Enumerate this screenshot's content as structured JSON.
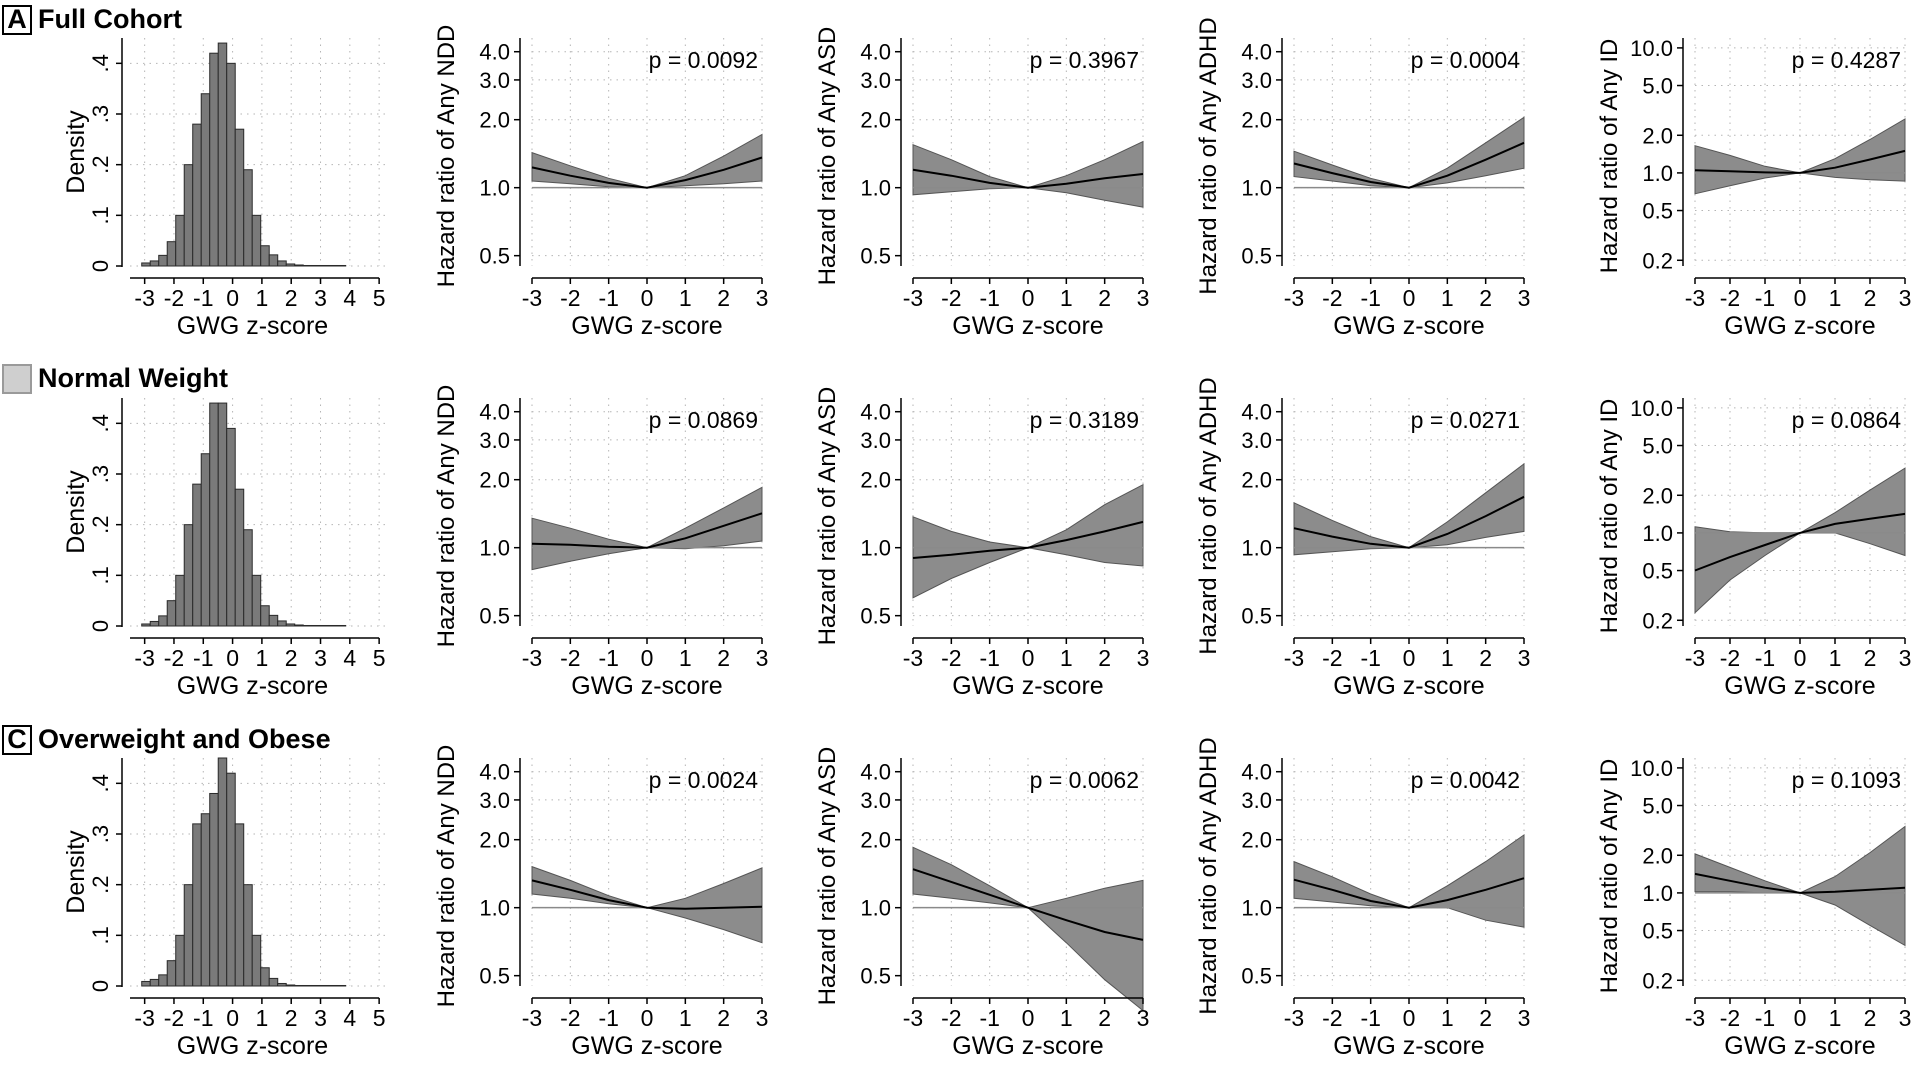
{
  "rows": [
    {
      "tag": "A",
      "title": "Full Cohort"
    },
    {
      "tag": "",
      "title": "Normal Weight"
    },
    {
      "tag": "C",
      "title": "Overweight and Obese"
    }
  ],
  "chart_data": [
    {
      "panel": "A",
      "type": "bar",
      "kind": "histogram",
      "xlabel": "GWG z-score",
      "ylabel": "Density",
      "xlim": [
        -3.5,
        5.2
      ],
      "ylim": [
        0,
        0.45
      ],
      "xticks": [
        "-3",
        "-2",
        "-1",
        "0",
        "1",
        "2",
        "3",
        "4",
        "5"
      ],
      "yticks": [
        "0",
        ".1",
        ".2",
        ".3",
        ".4"
      ],
      "bin_start": -3.1,
      "bin_width": 0.29,
      "values": [
        0.006,
        0.01,
        0.021,
        0.048,
        0.1,
        0.2,
        0.28,
        0.34,
        0.42,
        0.44,
        0.4,
        0.27,
        0.19,
        0.1,
        0.04,
        0.022,
        0.01,
        0.004,
        0.002,
        0.001,
        0.001,
        0.001,
        0.001,
        0.001
      ]
    },
    {
      "panel": "A",
      "type": "area",
      "outcome": "NDD",
      "xlabel": "GWG z-score",
      "ylabel": "Hazard ratio of Any NDD",
      "scale": "log",
      "xlim": [
        -3,
        3
      ],
      "ylim": [
        0.45,
        4.6
      ],
      "xticks": [
        "-3",
        "-2",
        "-1",
        "0",
        "1",
        "2",
        "3"
      ],
      "yticks": [
        "0.5",
        "1.0",
        "2.0",
        "3.0",
        "4.0"
      ],
      "annotation": "p = 0.0092",
      "x": [
        -3,
        -2,
        -1,
        0,
        1,
        2,
        3
      ],
      "hr": [
        1.23,
        1.13,
        1.05,
        1.0,
        1.08,
        1.2,
        1.36
      ],
      "lower": [
        1.07,
        1.04,
        1.01,
        1.0,
        1.02,
        1.04,
        1.07
      ],
      "upper": [
        1.43,
        1.25,
        1.1,
        1.0,
        1.13,
        1.38,
        1.72
      ]
    },
    {
      "panel": "A",
      "type": "area",
      "outcome": "ASD",
      "xlabel": "GWG z-score",
      "ylabel": "Hazard ratio of Any ASD",
      "scale": "log",
      "xlim": [
        -3,
        3
      ],
      "ylim": [
        0.45,
        4.6
      ],
      "xticks": [
        "-3",
        "-2",
        "-1",
        "0",
        "1",
        "2",
        "3"
      ],
      "yticks": [
        "0.5",
        "1.0",
        "2.0",
        "3.0",
        "4.0"
      ],
      "annotation": "p = 0.3967",
      "x": [
        -3,
        -2,
        -1,
        0,
        1,
        2,
        3
      ],
      "hr": [
        1.2,
        1.13,
        1.05,
        1.0,
        1.04,
        1.1,
        1.15
      ],
      "lower": [
        0.93,
        0.96,
        0.99,
        1.0,
        0.95,
        0.88,
        0.82
      ],
      "upper": [
        1.55,
        1.33,
        1.12,
        1.0,
        1.13,
        1.33,
        1.6
      ]
    },
    {
      "panel": "A",
      "type": "area",
      "outcome": "ADHD",
      "xlabel": "GWG z-score",
      "ylabel": "Hazard ratio of Any ADHD",
      "scale": "log",
      "xlim": [
        -3,
        3
      ],
      "ylim": [
        0.45,
        4.6
      ],
      "xticks": [
        "-3",
        "-2",
        "-1",
        "0",
        "1",
        "2",
        "3"
      ],
      "yticks": [
        "0.5",
        "1.0",
        "2.0",
        "3.0",
        "4.0"
      ],
      "annotation": "p = 0.0004",
      "x": [
        -3,
        -2,
        -1,
        0,
        1,
        2,
        3
      ],
      "hr": [
        1.28,
        1.16,
        1.06,
        1.0,
        1.13,
        1.33,
        1.58
      ],
      "lower": [
        1.12,
        1.07,
        1.02,
        1.0,
        1.05,
        1.13,
        1.22
      ],
      "upper": [
        1.45,
        1.26,
        1.1,
        1.0,
        1.22,
        1.58,
        2.05
      ]
    },
    {
      "panel": "A",
      "type": "area",
      "outcome": "ID",
      "xlabel": "GWG z-score",
      "ylabel": "Hazard ratio of Any ID",
      "scale": "log",
      "xlim": [
        -3,
        3
      ],
      "ylim": [
        0.18,
        12
      ],
      "xticks": [
        "-3",
        "-2",
        "-1",
        "0",
        "1",
        "2",
        "3"
      ],
      "yticks": [
        "0.2",
        "0.5",
        "1.0",
        "2.0",
        "5.0",
        "10.0"
      ],
      "annotation": "p = 0.4287",
      "x": [
        -3,
        -2,
        -1,
        0,
        1,
        2,
        3
      ],
      "hr": [
        1.05,
        1.03,
        1.01,
        1.0,
        1.1,
        1.28,
        1.5
      ],
      "lower": [
        0.68,
        0.79,
        0.91,
        1.0,
        0.92,
        0.88,
        0.86
      ],
      "upper": [
        1.65,
        1.38,
        1.13,
        1.0,
        1.3,
        1.85,
        2.7
      ]
    },
    {
      "panel": "Normal Weight",
      "type": "bar",
      "kind": "histogram",
      "xlabel": "GWG z-score",
      "ylabel": "Density",
      "xlim": [
        -3.5,
        5.2
      ],
      "ylim": [
        0,
        0.45
      ],
      "xticks": [
        "-3",
        "-2",
        "-1",
        "0",
        "1",
        "2",
        "3",
        "4",
        "5"
      ],
      "yticks": [
        "0",
        ".1",
        ".2",
        ".3",
        ".4"
      ],
      "bin_start": -3.1,
      "bin_width": 0.29,
      "values": [
        0.004,
        0.009,
        0.02,
        0.05,
        0.1,
        0.2,
        0.28,
        0.34,
        0.44,
        0.44,
        0.39,
        0.27,
        0.19,
        0.1,
        0.04,
        0.021,
        0.01,
        0.004,
        0.002,
        0.001,
        0.001,
        0.001,
        0.001,
        0.001
      ]
    },
    {
      "panel": "Normal Weight",
      "type": "area",
      "outcome": "NDD",
      "xlabel": "GWG z-score",
      "ylabel": "Hazard ratio of Any NDD",
      "scale": "log",
      "xlim": [
        -3,
        3
      ],
      "ylim": [
        0.45,
        4.6
      ],
      "xticks": [
        "-3",
        "-2",
        "-1",
        "0",
        "1",
        "2",
        "3"
      ],
      "yticks": [
        "0.5",
        "1.0",
        "2.0",
        "3.0",
        "4.0"
      ],
      "annotation": "p = 0.0869",
      "x": [
        -3,
        -2,
        -1,
        0,
        1,
        2,
        3
      ],
      "hr": [
        1.04,
        1.03,
        1.01,
        1.0,
        1.1,
        1.25,
        1.42
      ],
      "lower": [
        0.8,
        0.87,
        0.94,
        1.0,
        0.99,
        1.02,
        1.07
      ],
      "upper": [
        1.35,
        1.22,
        1.09,
        1.0,
        1.22,
        1.5,
        1.85
      ]
    },
    {
      "panel": "Normal Weight",
      "type": "area",
      "outcome": "ASD",
      "xlabel": "GWG z-score",
      "ylabel": "Hazard ratio of Any ASD",
      "scale": "log",
      "xlim": [
        -3,
        3
      ],
      "ylim": [
        0.45,
        4.6
      ],
      "xticks": [
        "-3",
        "-2",
        "-1",
        "0",
        "1",
        "2",
        "3"
      ],
      "yticks": [
        "0.5",
        "1.0",
        "2.0",
        "3.0",
        "4.0"
      ],
      "annotation": "p = 0.3189",
      "x": [
        -3,
        -2,
        -1,
        0,
        1,
        2,
        3
      ],
      "hr": [
        0.9,
        0.93,
        0.97,
        1.0,
        1.08,
        1.18,
        1.3
      ],
      "lower": [
        0.6,
        0.73,
        0.86,
        1.0,
        0.93,
        0.86,
        0.83
      ],
      "upper": [
        1.37,
        1.18,
        1.06,
        1.0,
        1.2,
        1.55,
        1.9
      ]
    },
    {
      "panel": "Normal Weight",
      "type": "area",
      "outcome": "ADHD",
      "xlabel": "GWG z-score",
      "ylabel": "Hazard ratio of Any ADHD",
      "scale": "log",
      "xlim": [
        -3,
        3
      ],
      "ylim": [
        0.45,
        4.6
      ],
      "xticks": [
        "-3",
        "-2",
        "-1",
        "0",
        "1",
        "2",
        "3"
      ],
      "yticks": [
        "0.5",
        "1.0",
        "2.0",
        "3.0",
        "4.0"
      ],
      "annotation": "p = 0.0271",
      "x": [
        -3,
        -2,
        -1,
        0,
        1,
        2,
        3
      ],
      "hr": [
        1.22,
        1.12,
        1.04,
        1.0,
        1.15,
        1.38,
        1.68
      ],
      "lower": [
        0.93,
        0.96,
        0.99,
        1.0,
        1.03,
        1.11,
        1.18
      ],
      "upper": [
        1.58,
        1.32,
        1.12,
        1.0,
        1.3,
        1.75,
        2.35
      ]
    },
    {
      "panel": "Normal Weight",
      "type": "area",
      "outcome": "ID",
      "xlabel": "GWG z-score",
      "ylabel": "Hazard ratio of Any ID",
      "scale": "log",
      "xlim": [
        -3,
        3
      ],
      "ylim": [
        0.18,
        12
      ],
      "xticks": [
        "-3",
        "-2",
        "-1",
        "0",
        "1",
        "2",
        "3"
      ],
      "yticks": [
        "0.2",
        "0.5",
        "1.0",
        "2.0",
        "5.0",
        "10.0"
      ],
      "annotation": "p = 0.0864",
      "x": [
        -3,
        -2,
        -1,
        0,
        1,
        2,
        3
      ],
      "hr": [
        0.5,
        0.64,
        0.8,
        1.0,
        1.18,
        1.3,
        1.42
      ],
      "lower": [
        0.23,
        0.42,
        0.66,
        1.0,
        1.0,
        0.82,
        0.66
      ],
      "upper": [
        1.12,
        1.02,
        1.0,
        1.0,
        1.45,
        2.2,
        3.3
      ]
    },
    {
      "panel": "C",
      "type": "bar",
      "kind": "histogram",
      "xlabel": "GWG z-score",
      "ylabel": "Density",
      "xlim": [
        -3.5,
        5.2
      ],
      "ylim": [
        0,
        0.45
      ],
      "xticks": [
        "-3",
        "-2",
        "-1",
        "0",
        "1",
        "2",
        "3",
        "4",
        "5"
      ],
      "yticks": [
        "0",
        ".1",
        ".2",
        ".3",
        ".4"
      ],
      "bin_start": -3.1,
      "bin_width": 0.29,
      "values": [
        0.009,
        0.013,
        0.022,
        0.05,
        0.1,
        0.2,
        0.32,
        0.34,
        0.38,
        0.45,
        0.42,
        0.32,
        0.2,
        0.1,
        0.036,
        0.015,
        0.005,
        0.002,
        0.001,
        0.001,
        0.001,
        0.001,
        0.001,
        0.001
      ]
    },
    {
      "panel": "C",
      "type": "area",
      "outcome": "NDD",
      "xlabel": "GWG z-score",
      "ylabel": "Hazard ratio of Any NDD",
      "scale": "log",
      "xlim": [
        -3,
        3
      ],
      "ylim": [
        0.45,
        4.6
      ],
      "xticks": [
        "-3",
        "-2",
        "-1",
        "0",
        "1",
        "2",
        "3"
      ],
      "yticks": [
        "0.5",
        "1.0",
        "2.0",
        "3.0",
        "4.0"
      ],
      "annotation": "p = 0.0024",
      "x": [
        -3,
        -2,
        -1,
        0,
        1,
        2,
        3
      ],
      "hr": [
        1.32,
        1.2,
        1.08,
        1.0,
        0.99,
        1.0,
        1.01
      ],
      "lower": [
        1.15,
        1.1,
        1.04,
        1.0,
        0.9,
        0.8,
        0.7
      ],
      "upper": [
        1.52,
        1.32,
        1.13,
        1.0,
        1.1,
        1.28,
        1.5
      ]
    },
    {
      "panel": "C",
      "type": "area",
      "outcome": "ASD",
      "xlabel": "GWG z-score",
      "ylabel": "Hazard ratio of Any ASD",
      "scale": "log",
      "xlim": [
        -3,
        3
      ],
      "ylim": [
        0.45,
        4.6
      ],
      "xticks": [
        "-3",
        "-2",
        "-1",
        "0",
        "1",
        "2",
        "3"
      ],
      "yticks": [
        "0.5",
        "1.0",
        "2.0",
        "3.0",
        "4.0"
      ],
      "annotation": "p = 0.0062",
      "x": [
        -3,
        -2,
        -1,
        0,
        1,
        2,
        3
      ],
      "hr": [
        1.48,
        1.3,
        1.14,
        1.0,
        0.88,
        0.78,
        0.72
      ],
      "lower": [
        1.15,
        1.1,
        1.05,
        1.0,
        0.7,
        0.48,
        0.35
      ],
      "upper": [
        1.85,
        1.55,
        1.25,
        1.0,
        1.1,
        1.22,
        1.32
      ]
    },
    {
      "panel": "C",
      "type": "area",
      "outcome": "ADHD",
      "xlabel": "GWG z-score",
      "ylabel": "Hazard ratio of Any ADHD",
      "scale": "log",
      "xlim": [
        -3,
        3
      ],
      "ylim": [
        0.45,
        4.6
      ],
      "xticks": [
        "-3",
        "-2",
        "-1",
        "0",
        "1",
        "2",
        "3"
      ],
      "yticks": [
        "0.5",
        "1.0",
        "2.0",
        "3.0",
        "4.0"
      ],
      "annotation": "p = 0.0042",
      "x": [
        -3,
        -2,
        -1,
        0,
        1,
        2,
        3
      ],
      "hr": [
        1.33,
        1.2,
        1.07,
        1.0,
        1.08,
        1.2,
        1.35
      ],
      "lower": [
        1.1,
        1.06,
        1.02,
        1.0,
        1.0,
        0.88,
        0.82
      ],
      "upper": [
        1.6,
        1.37,
        1.15,
        1.0,
        1.25,
        1.6,
        2.1
      ]
    },
    {
      "panel": "C",
      "type": "area",
      "outcome": "ID",
      "xlabel": "GWG z-score",
      "ylabel": "Hazard ratio of Any ID",
      "scale": "log",
      "xlim": [
        -3,
        3
      ],
      "ylim": [
        0.18,
        12
      ],
      "xticks": [
        "-3",
        "-2",
        "-1",
        "0",
        "1",
        "2",
        "3"
      ],
      "yticks": [
        "0.2",
        "0.5",
        "1.0",
        "2.0",
        "5.0",
        "10.0"
      ],
      "annotation": "p = 0.1093",
      "x": [
        -3,
        -2,
        -1,
        0,
        1,
        2,
        3
      ],
      "hr": [
        1.42,
        1.25,
        1.1,
        1.0,
        1.02,
        1.06,
        1.1
      ],
      "lower": [
        1.02,
        1.02,
        1.0,
        1.0,
        0.8,
        0.55,
        0.38
      ],
      "upper": [
        2.05,
        1.6,
        1.25,
        1.0,
        1.35,
        2.1,
        3.4
      ]
    }
  ]
}
